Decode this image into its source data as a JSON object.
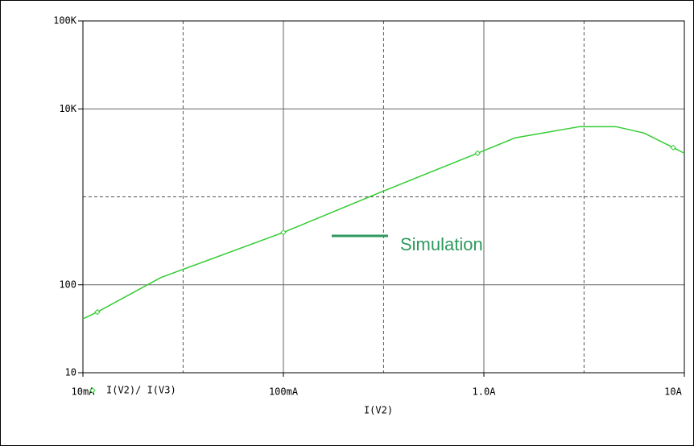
{
  "chart_data": {
    "type": "line",
    "x_label": "I(V2)",
    "annotation": "Simulation",
    "annotation_color": "#2e9a5e",
    "x": [
      0.01,
      0.0118,
      0.0245,
      0.1,
      0.3,
      0.93,
      1.43,
      3.0,
      4.56,
      6.3,
      8.8,
      10
    ],
    "series": [
      {
        "name": "I(V2)/ I(V3)",
        "color": "#33cc33",
        "values": [
          41,
          49,
          121,
          394,
          1110,
          3130,
          4680,
          6280,
          6280,
          5310,
          3630,
          3130
        ]
      }
    ],
    "xlim": [
      0.01,
      10
    ],
    "ylim": [
      10,
      100000
    ],
    "xticks": [
      {
        "value": 0.01,
        "label": "10mA"
      },
      {
        "value": 0.1,
        "label": "100mA"
      },
      {
        "value": 1,
        "label": "1.0A"
      },
      {
        "value": 10,
        "label": "10A"
      }
    ],
    "yticks": [
      10,
      100,
      {
        "value": 10000,
        "label": "10K"
      },
      {
        "value": 100000,
        "label": "100K"
      }
    ],
    "x_dashed_grid": [
      0.0316,
      0.316,
      3.16
    ],
    "y_dashed_grid": [
      1000
    ],
    "xscale": "log",
    "yscale": "log",
    "grid": true
  }
}
